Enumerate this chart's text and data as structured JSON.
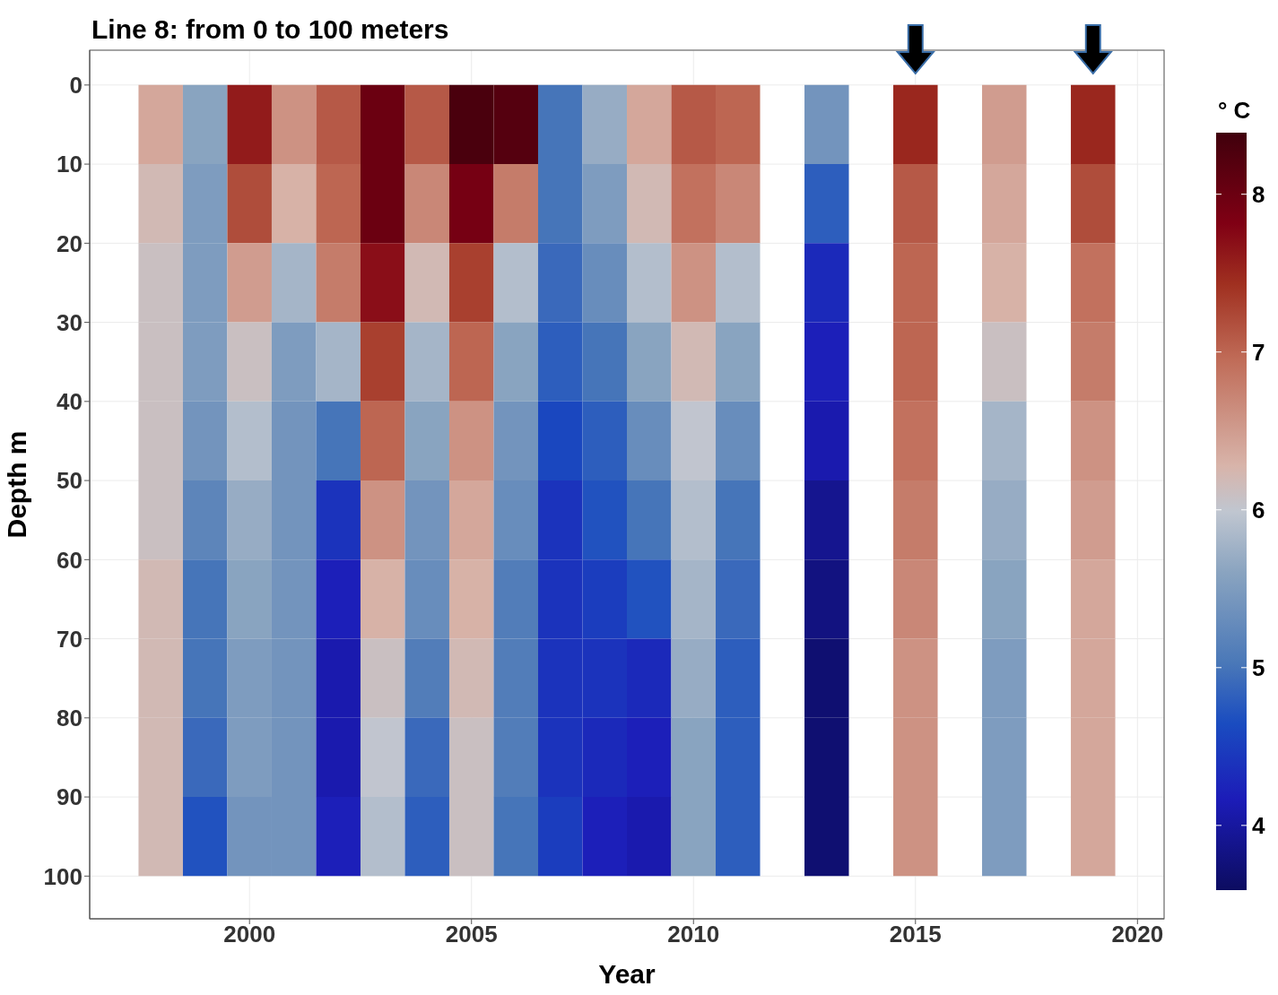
{
  "chart_data": {
    "type": "heatmap",
    "title": "Line 8: from 0 to 100 meters",
    "xlabel": "Year",
    "ylabel": "Depth m",
    "clabel": "° C",
    "x": [
      1998,
      1999,
      2000,
      2001,
      2002,
      2003,
      2004,
      2005,
      2006,
      2007,
      2008,
      2009,
      2010,
      2011,
      2012,
      2013,
      2014,
      2015,
      2016,
      2017,
      2018,
      2019
    ],
    "cells": [
      [
        6.4,
        5.6,
        7.6,
        6.6,
        7.1,
        8.0,
        7.1,
        8.3,
        8.2,
        5.0,
        5.7,
        6.4,
        7.1,
        7.0,
        null,
        5.4,
        null,
        7.5,
        null,
        6.5,
        null,
        7.5
      ],
      [
        6.2,
        5.5,
        7.2,
        6.3,
        7.0,
        8.0,
        6.7,
        7.9,
        6.8,
        5.0,
        5.5,
        6.2,
        6.9,
        6.7,
        null,
        4.8,
        null,
        7.1,
        null,
        6.4,
        null,
        7.2
      ],
      [
        6.1,
        5.5,
        6.5,
        5.8,
        6.8,
        7.7,
        6.2,
        7.3,
        5.9,
        4.9,
        5.3,
        5.9,
        6.6,
        5.9,
        null,
        4.3,
        null,
        7.0,
        null,
        6.3,
        null,
        6.9
      ],
      [
        6.1,
        5.5,
        6.1,
        5.5,
        5.8,
        7.3,
        5.8,
        7.0,
        5.6,
        4.8,
        5.0,
        5.6,
        6.2,
        5.6,
        null,
        4.2,
        null,
        7.0,
        null,
        6.1,
        null,
        6.8
      ],
      [
        6.1,
        5.4,
        5.9,
        5.4,
        5.0,
        7.0,
        5.6,
        6.6,
        5.4,
        4.6,
        4.8,
        5.3,
        6.0,
        5.3,
        null,
        4.1,
        null,
        6.9,
        null,
        5.8,
        null,
        6.6
      ],
      [
        6.1,
        5.2,
        5.7,
        5.4,
        4.4,
        6.6,
        5.4,
        6.4,
        5.3,
        4.4,
        4.7,
        5.0,
        5.9,
        5.0,
        null,
        3.9,
        null,
        6.8,
        null,
        5.7,
        null,
        6.5
      ],
      [
        6.2,
        5.0,
        5.6,
        5.4,
        4.2,
        6.3,
        5.3,
        6.3,
        5.1,
        4.4,
        4.5,
        4.7,
        5.8,
        4.9,
        null,
        3.8,
        null,
        6.7,
        null,
        5.6,
        null,
        6.4
      ],
      [
        6.2,
        5.0,
        5.5,
        5.4,
        4.1,
        6.1,
        5.1,
        6.2,
        5.1,
        4.4,
        4.4,
        4.3,
        5.7,
        4.8,
        null,
        3.7,
        null,
        6.6,
        null,
        5.5,
        null,
        6.4
      ],
      [
        6.2,
        4.9,
        5.5,
        5.4,
        4.1,
        6.0,
        4.9,
        6.1,
        5.1,
        4.4,
        4.3,
        4.2,
        5.6,
        4.8,
        null,
        3.7,
        null,
        6.6,
        null,
        5.5,
        null,
        6.4
      ],
      [
        6.2,
        4.7,
        5.4,
        5.4,
        4.2,
        5.9,
        4.8,
        6.1,
        5.0,
        4.5,
        4.2,
        4.1,
        5.6,
        4.8,
        null,
        3.7,
        null,
        6.6,
        null,
        5.5,
        null,
        6.4
      ]
    ],
    "xlim": [
      1996.4,
      2020.6
    ],
    "xticks": [
      2000,
      2005,
      2010,
      2015,
      2020
    ],
    "ylim": [
      105.4,
      -4.4
    ],
    "yticks": [
      0,
      10,
      20,
      30,
      40,
      50,
      60,
      70,
      80,
      90,
      100
    ],
    "clim": [
      3.59,
      8.39
    ],
    "cticks": [
      4,
      5,
      6,
      7,
      8
    ],
    "grid": true
  }
}
